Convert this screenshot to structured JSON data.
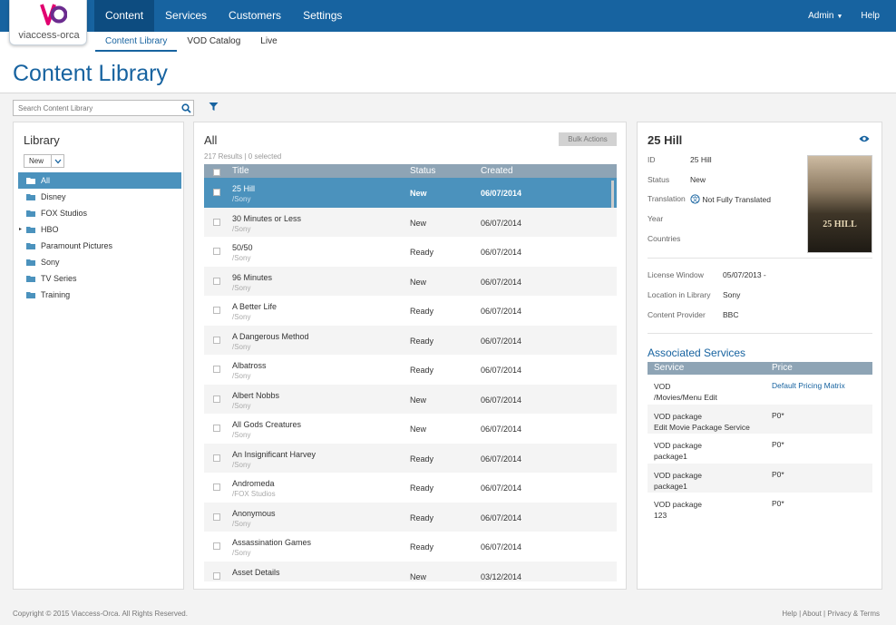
{
  "brand": {
    "name": "viaccess-orca",
    "colors": {
      "primary": "#1763a0",
      "selected": "#4b92bd",
      "header": "#8ea4b5",
      "logo_magenta": "#e1006f",
      "logo_purple": "#6b2c8f"
    }
  },
  "nav": {
    "items": [
      "Content",
      "Services",
      "Customers",
      "Settings"
    ],
    "active": "Content",
    "admin": "Admin",
    "help": "Help"
  },
  "subnav": {
    "items": [
      "Content Library",
      "VOD Catalog",
      "Live"
    ],
    "active": "Content Library"
  },
  "page_title": "Content Library",
  "search": {
    "placeholder": "Search Content Library",
    "icon": "search-icon",
    "filter_icon": "filter-icon"
  },
  "library": {
    "title": "Library",
    "dropdown": "New",
    "items": [
      {
        "label": "All",
        "selected": true
      },
      {
        "label": "Disney"
      },
      {
        "label": "FOX Studios"
      },
      {
        "label": "HBO",
        "expandable": true
      },
      {
        "label": "Paramount Pictures"
      },
      {
        "label": "Sony"
      },
      {
        "label": "TV Series"
      },
      {
        "label": "Training"
      }
    ]
  },
  "list": {
    "title": "All",
    "bulk_actions": "Bulk Actions",
    "results": "217 Results | 0 selected",
    "columns": [
      "Title",
      "Status",
      "Created"
    ],
    "rows": [
      {
        "title": "25 Hill",
        "provider": "/Sony",
        "status": "New",
        "created": "06/07/2014",
        "selected": true
      },
      {
        "title": "30 Minutes or Less",
        "provider": "/Sony",
        "status": "New",
        "created": "06/07/2014"
      },
      {
        "title": "50/50",
        "provider": "/Sony",
        "status": "Ready",
        "created": "06/07/2014"
      },
      {
        "title": "96 Minutes",
        "provider": "/Sony",
        "status": "New",
        "created": "06/07/2014"
      },
      {
        "title": "A Better Life",
        "provider": "/Sony",
        "status": "Ready",
        "created": "06/07/2014"
      },
      {
        "title": "A Dangerous Method",
        "provider": "/Sony",
        "status": "Ready",
        "created": "06/07/2014"
      },
      {
        "title": "Albatross",
        "provider": "/Sony",
        "status": "Ready",
        "created": "06/07/2014"
      },
      {
        "title": "Albert Nobbs",
        "provider": "/Sony",
        "status": "New",
        "created": "06/07/2014"
      },
      {
        "title": "All Gods Creatures",
        "provider": "/Sony",
        "status": "New",
        "created": "06/07/2014"
      },
      {
        "title": "An Insignificant Harvey",
        "provider": "/Sony",
        "status": "Ready",
        "created": "06/07/2014"
      },
      {
        "title": "Andromeda",
        "provider": "/FOX Studios",
        "status": "Ready",
        "created": "06/07/2014"
      },
      {
        "title": "Anonymous",
        "provider": "/Sony",
        "status": "Ready",
        "created": "06/07/2014"
      },
      {
        "title": "Assassination Games",
        "provider": "/Sony",
        "status": "Ready",
        "created": "06/07/2014"
      },
      {
        "title": "Asset Details",
        "provider": "",
        "status": "New",
        "created": "03/12/2014"
      }
    ]
  },
  "detail": {
    "title": "25 Hill",
    "fields": [
      {
        "label": "ID",
        "value": "25 Hill"
      },
      {
        "label": "Status",
        "value": "New"
      },
      {
        "label": "Translation",
        "value": "Not Fully Translated"
      },
      {
        "label": "Year",
        "value": ""
      },
      {
        "label": "Countries",
        "value": ""
      }
    ],
    "fields2": [
      {
        "label": "License Window",
        "value": "05/07/2013 -"
      },
      {
        "label": "Location in Library",
        "value": "Sony"
      },
      {
        "label": "Content Provider",
        "value": "BBC"
      }
    ],
    "poster_text": "25 HILL",
    "associated_title": "Associated Services",
    "svc_columns": [
      "Service",
      "Price"
    ],
    "services": [
      {
        "line1": "VOD",
        "line2": "/Movies/Menu Edit",
        "price": "Default Pricing Matrix",
        "link": true
      },
      {
        "line1": "VOD package",
        "line2": "Edit Movie Package Service",
        "price": "P0*"
      },
      {
        "line1": "VOD package",
        "line2": "package1",
        "price": "P0*"
      },
      {
        "line1": "VOD package",
        "line2": "package1",
        "price": "P0*"
      },
      {
        "line1": "VOD package",
        "line2": "123",
        "price": "P0*"
      }
    ]
  },
  "footer": {
    "copyright": "Copyright © 2015 Viaccess-Orca. All Rights Reserved.",
    "links": "Help | About | Privacy & Terms"
  }
}
